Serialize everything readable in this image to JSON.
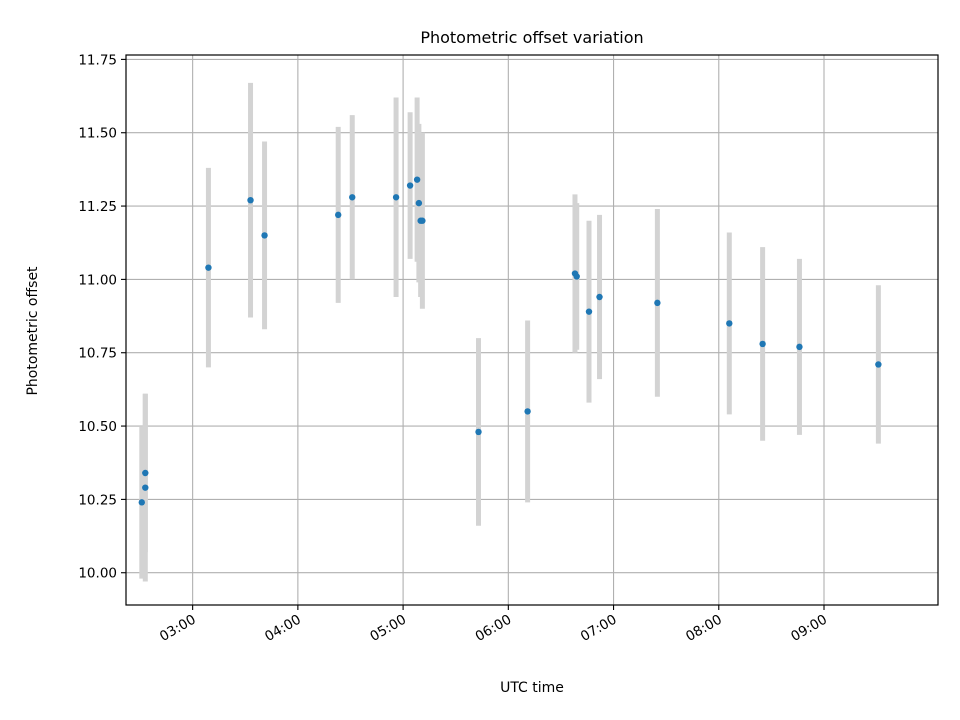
{
  "chart_data": {
    "type": "scatter",
    "title": "Photometric offset variation",
    "xlabel": "UTC time",
    "ylabel": "Photometric offset",
    "xlim": [
      "02:22",
      "10:05"
    ],
    "ylim": [
      9.89,
      11.765
    ],
    "grid": true,
    "x_ticks": [
      "03:00",
      "04:00",
      "05:00",
      "06:00",
      "07:00",
      "08:00",
      "09:00"
    ],
    "y_ticks": [
      "10.00",
      "10.25",
      "10.50",
      "10.75",
      "11.00",
      "11.25",
      "11.50",
      "11.75"
    ],
    "y_tick_values": [
      10.0,
      10.25,
      10.5,
      10.75,
      11.0,
      11.25,
      11.5,
      11.75
    ],
    "marker_color": "#1f77b4",
    "errorbar_color": "#d3d3d3",
    "points": [
      {
        "x": "02:31",
        "y": 10.24,
        "err": 0.26
      },
      {
        "x": "02:33",
        "y": 10.34,
        "err": 0.27
      },
      {
        "x": "02:33",
        "y": 10.29,
        "err": 0.32
      },
      {
        "x": "03:09",
        "y": 11.04,
        "err": 0.34
      },
      {
        "x": "03:33",
        "y": 11.27,
        "err": 0.4
      },
      {
        "x": "03:41",
        "y": 11.15,
        "err": 0.32
      },
      {
        "x": "04:23",
        "y": 11.22,
        "err": 0.3
      },
      {
        "x": "04:31",
        "y": 11.28,
        "err": 0.28
      },
      {
        "x": "04:56",
        "y": 11.28,
        "err": 0.34
      },
      {
        "x": "05:04",
        "y": 11.32,
        "err": 0.25
      },
      {
        "x": "05:08",
        "y": 11.34,
        "err": 0.28
      },
      {
        "x": "05:09",
        "y": 11.26,
        "err": 0.27
      },
      {
        "x": "05:10",
        "y": 11.2,
        "err": 0.26
      },
      {
        "x": "05:11",
        "y": 11.2,
        "err": 0.3
      },
      {
        "x": "05:43",
        "y": 10.48,
        "err": 0.32
      },
      {
        "x": "06:11",
        "y": 10.55,
        "err": 0.31
      },
      {
        "x": "06:38",
        "y": 11.02,
        "err": 0.27
      },
      {
        "x": "06:39",
        "y": 11.01,
        "err": 0.25
      },
      {
        "x": "06:46",
        "y": 10.89,
        "err": 0.31
      },
      {
        "x": "06:52",
        "y": 10.94,
        "err": 0.28
      },
      {
        "x": "07:25",
        "y": 10.92,
        "err": 0.32
      },
      {
        "x": "08:06",
        "y": 10.85,
        "err": 0.31
      },
      {
        "x": "08:25",
        "y": 10.78,
        "err": 0.33
      },
      {
        "x": "08:46",
        "y": 10.77,
        "err": 0.3
      },
      {
        "x": "09:31",
        "y": 10.71,
        "err": 0.27
      }
    ]
  }
}
